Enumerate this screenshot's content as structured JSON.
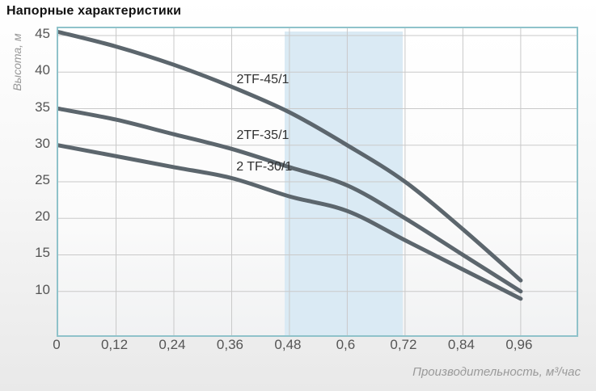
{
  "title": "Напорные характеристики",
  "colors": {
    "curve": "#5c666d",
    "highlight_band": "#daeaf4",
    "plot_border": "#8fc2ca",
    "grid": "#c9c9c9",
    "tick_text": "#555555",
    "axis_label_text": "#9a9a9a",
    "curve_label_text": "#303030",
    "title_text": "#111111"
  },
  "chart_data": {
    "type": "line",
    "title": "Напорные характеристики",
    "xlabel": "Производительность, м³/час",
    "ylabel": "Высота, м",
    "x": [
      0,
      0.12,
      0.24,
      0.36,
      0.48,
      0.6,
      0.72,
      0.84,
      0.96
    ],
    "x_tick_labels": [
      "0",
      "0,12",
      "0,24",
      "0,36",
      "0,48",
      "0,6",
      "0,72",
      "0,84",
      "0,96"
    ],
    "y_ticks": [
      10,
      15,
      20,
      25,
      30,
      35,
      40,
      45
    ],
    "xlim": [
      0,
      1.076
    ],
    "ylim": [
      4,
      46
    ],
    "grid": true,
    "legend_position": "inline-labels",
    "highlight_band": {
      "x_from": 0.47,
      "x_to": 0.715
    },
    "series": [
      {
        "name": "2TF-45/1",
        "values": [
          45.5,
          43.5,
          41,
          38,
          34.5,
          30,
          25,
          18.5,
          11.5
        ],
        "label_pos": {
          "x": 0.428,
          "y": 38.7
        }
      },
      {
        "name": "2TF-35/1",
        "values": [
          35,
          33.5,
          31.5,
          29.5,
          27,
          24.5,
          20,
          15,
          10
        ],
        "label_pos": {
          "x": 0.428,
          "y": 31.1
        }
      },
      {
        "name": "2 TF-30/1",
        "values": [
          30,
          28.5,
          27,
          25.5,
          23,
          21,
          17,
          13,
          9
        ],
        "label_pos": {
          "x": 0.431,
          "y": 26.8
        }
      }
    ]
  }
}
